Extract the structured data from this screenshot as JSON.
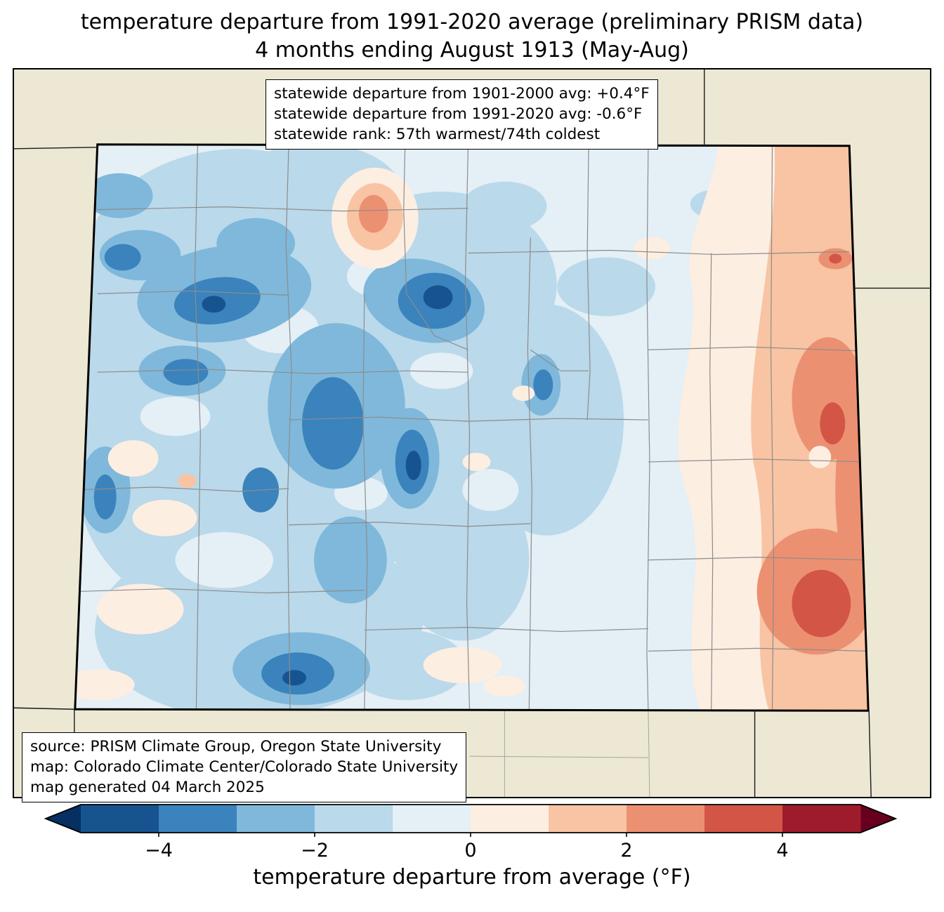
{
  "title": {
    "line1": "temperature departure from 1991-2020 average (preliminary PRISM data)",
    "line2": "4 months ending August 1913 (May-Aug)"
  },
  "stats_box": {
    "lines": [
      "statewide departure from 1901-2000 avg: +0.4°F",
      "statewide departure from 1991-2020 avg: -0.6°F",
      "statewide rank: 57th warmest/74th coldest"
    ]
  },
  "source_box": {
    "lines": [
      "source: PRISM Climate Group, Oregon State University",
      "map: Colorado Climate Center/Colorado State University",
      "map generated 04 March 2025"
    ]
  },
  "map": {
    "region": "Colorado",
    "background_color": "#ece8d4"
  },
  "colorbar": {
    "label": "temperature departure from average (°F)",
    "ticks": [
      "−4",
      "−2",
      "0",
      "2",
      "4"
    ],
    "tick_values": [
      -4,
      -2,
      0,
      2,
      4
    ],
    "range": [
      -5,
      5
    ],
    "under_color": "#053061",
    "over_color": "#67001f",
    "segment_colors": [
      "#17538f",
      "#3a83bd",
      "#7fb8da",
      "#bad9ea",
      "#e4eff6",
      "#fdeee2",
      "#f8c4a3",
      "#ec9072",
      "#d35546",
      "#9e1b2b"
    ]
  }
}
